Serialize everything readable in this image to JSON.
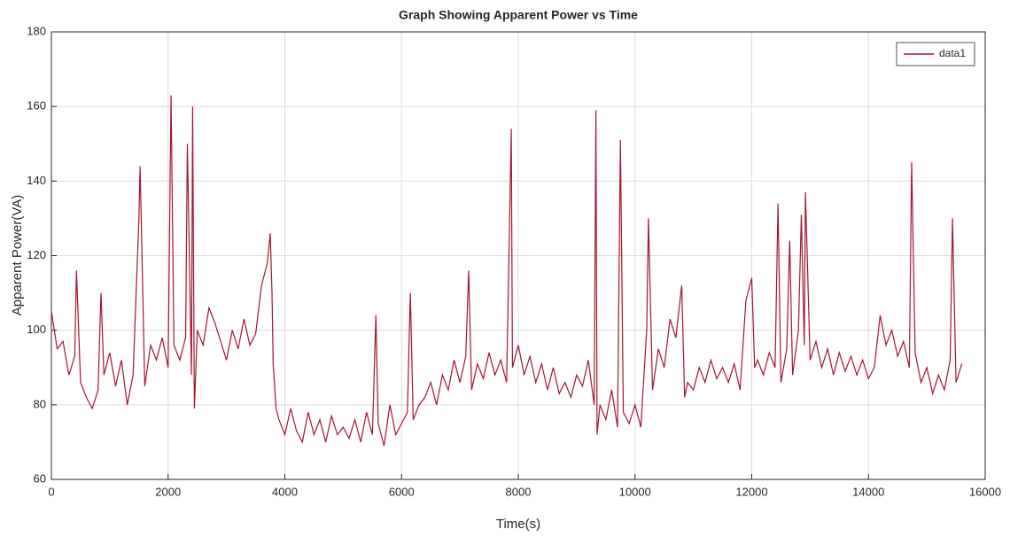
{
  "chart_data": {
    "type": "line",
    "title": "Graph Showing Apparent Power vs Time",
    "x_label": "Time(s)",
    "y_label": "Apparent Power(VA)",
    "xlim": [
      0,
      16000
    ],
    "xticks": [
      0,
      2000,
      4000,
      6000,
      8000,
      10000,
      12000,
      14000,
      16000
    ],
    "ylim": [
      60,
      180
    ],
    "yticks": [
      60,
      80,
      100,
      120,
      140,
      160,
      180
    ],
    "grid": true,
    "legend": "upper right",
    "x": [
      0,
      100,
      200,
      300,
      400,
      430,
      500,
      600,
      700,
      800,
      850,
      900,
      1000,
      1100,
      1200,
      1300,
      1400,
      1500,
      1520,
      1600,
      1700,
      1800,
      1900,
      2000,
      2050,
      2100,
      2200,
      2300,
      2330,
      2400,
      2420,
      2450,
      2500,
      2600,
      2700,
      2800,
      2900,
      3000,
      3100,
      3200,
      3300,
      3400,
      3500,
      3600,
      3700,
      3750,
      3780,
      3800,
      3850,
      3900,
      4000,
      4100,
      4200,
      4300,
      4400,
      4500,
      4600,
      4700,
      4800,
      4900,
      5000,
      5100,
      5200,
      5300,
      5400,
      5500,
      5560,
      5600,
      5700,
      5800,
      5900,
      6000,
      6100,
      6150,
      6200,
      6300,
      6400,
      6500,
      6600,
      6700,
      6800,
      6900,
      7000,
      7100,
      7150,
      7200,
      7300,
      7400,
      7500,
      7600,
      7700,
      7800,
      7880,
      7900,
      8000,
      8100,
      8200,
      8300,
      8400,
      8500,
      8600,
      8700,
      8800,
      8900,
      9000,
      9100,
      9200,
      9300,
      9330,
      9350,
      9400,
      9500,
      9600,
      9700,
      9750,
      9800,
      9900,
      10000,
      10100,
      10200,
      10230,
      10300,
      10400,
      10500,
      10600,
      10700,
      10800,
      10850,
      10900,
      11000,
      11100,
      11200,
      11300,
      11400,
      11500,
      11600,
      11700,
      11800,
      11900,
      12000,
      12050,
      12100,
      12200,
      12300,
      12400,
      12450,
      12500,
      12600,
      12650,
      12700,
      12800,
      12850,
      12900,
      12920,
      13000,
      13100,
      13200,
      13300,
      13400,
      13500,
      13600,
      13700,
      13800,
      13900,
      14000,
      14100,
      14200,
      14300,
      14400,
      14500,
      14600,
      14700,
      14740,
      14800,
      14900,
      15000,
      15100,
      15200,
      15300,
      15400,
      15440,
      15500,
      15600
    ],
    "series": [
      {
        "name": "data1",
        "color": "#a3152f",
        "values": [
          105,
          95,
          97,
          88,
          93,
          116,
          86,
          82,
          79,
          84,
          110,
          88,
          94,
          85,
          92,
          80,
          88,
          130,
          144,
          85,
          96,
          92,
          98,
          90,
          163,
          96,
          92,
          98,
          150,
          88,
          160,
          79,
          100,
          96,
          106,
          102,
          97,
          92,
          100,
          95,
          103,
          96,
          99,
          112,
          118,
          126,
          110,
          91,
          79,
          76,
          72,
          79,
          73,
          70,
          78,
          72,
          76,
          70,
          77,
          72,
          74,
          71,
          76,
          70,
          78,
          72,
          104,
          75,
          69,
          80,
          72,
          75,
          78,
          110,
          76,
          80,
          82,
          86,
          80,
          88,
          84,
          92,
          86,
          93,
          116,
          84,
          91,
          87,
          94,
          88,
          92,
          86,
          154,
          90,
          96,
          88,
          93,
          86,
          91,
          84,
          90,
          83,
          86,
          82,
          88,
          85,
          92,
          80,
          159,
          72,
          80,
          76,
          84,
          74,
          151,
          78,
          75,
          80,
          74,
          100,
          130,
          84,
          95,
          90,
          103,
          98,
          112,
          82,
          86,
          84,
          90,
          86,
          92,
          87,
          90,
          86,
          91,
          84,
          108,
          114,
          90,
          92,
          88,
          94,
          90,
          134,
          86,
          95,
          124,
          88,
          100,
          131,
          96,
          137,
          92,
          97,
          90,
          95,
          88,
          94,
          89,
          93,
          88,
          92,
          87,
          90,
          104,
          96,
          100,
          93,
          97,
          90,
          145,
          94,
          86,
          90,
          83,
          88,
          84,
          92,
          130,
          86,
          91
        ]
      }
    ]
  }
}
